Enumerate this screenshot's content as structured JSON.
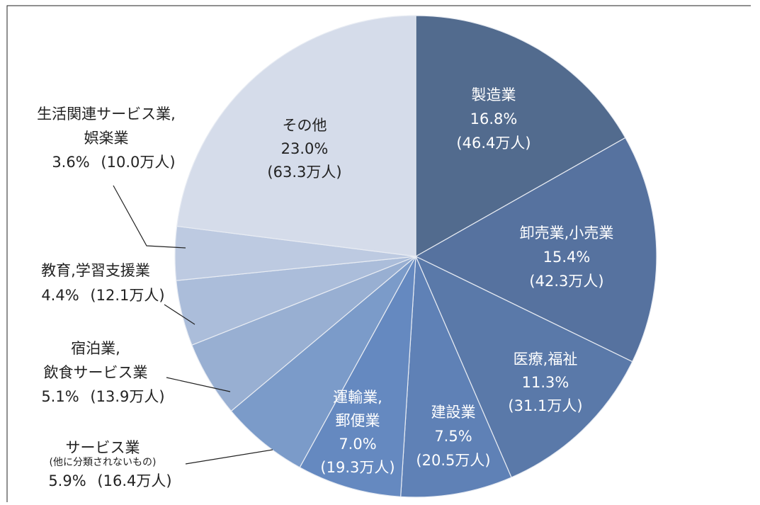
{
  "chart_data": {
    "type": "pie",
    "categories": [
      "製造業",
      "卸売業,小売業",
      "医療,福祉",
      "建設業",
      "運輸業,\n郵便業",
      "サービス業\n(他に分類されないもの)",
      "宿泊業,\n飲食サービス業",
      "教育,学習支援業",
      "生活関連サービス業,\n娯楽業",
      "その他"
    ],
    "values": [
      16.8,
      15.4,
      11.3,
      7.5,
      7.0,
      5.9,
      5.1,
      4.4,
      3.6,
      23.0
    ],
    "value_labels": [
      "16.8%",
      "15.4%",
      "11.3%",
      "7.5%",
      "7.0%",
      "5.9%",
      "5.1%",
      "4.4%",
      "3.6%",
      "23.0%"
    ],
    "count_labels": [
      "(46.4万人)",
      "(42.3万人)",
      "(31.1万人)",
      "(20.5万人)",
      "(19.3万人)",
      "(16.4万人)",
      "(13.9万人)",
      "(12.1万人)",
      "(10.0万人)",
      "(63.3万人)"
    ],
    "colors": [
      "#526b8e",
      "#56729f",
      "#5a79a9",
      "#5f81b6",
      "#6589c0",
      "#7b9bc9",
      "#98afd2",
      "#abbdda",
      "#bdcae1",
      "#d5dcea"
    ]
  }
}
